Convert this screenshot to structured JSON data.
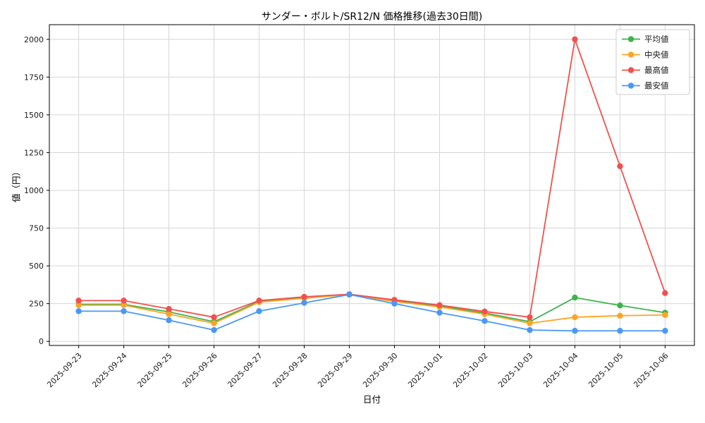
{
  "chart_data": {
    "type": "line",
    "title": "サンダー・ボルト/SR12/N 価格推移(過去30日間)",
    "xlabel": "日付",
    "ylabel": "値（円）",
    "x": [
      "2025-09-23",
      "2025-09-24",
      "2025-09-25",
      "2025-09-26",
      "2025-09-27",
      "2025-09-28",
      "2025-09-29",
      "2025-09-30",
      "2025-10-01",
      "2025-10-02",
      "2025-10-03",
      "2025-10-04",
      "2025-10-05",
      "2025-10-06"
    ],
    "series": [
      {
        "key": "average",
        "name": "平均値",
        "color": "#3cb44b",
        "values": [
          245,
          245,
          195,
          130,
          265,
          290,
          310,
          268,
          232,
          188,
          130,
          290,
          238,
          190
        ]
      },
      {
        "key": "median",
        "name": "中央値",
        "color": "#ffa323",
        "values": [
          240,
          240,
          180,
          120,
          260,
          285,
          310,
          264,
          228,
          180,
          120,
          160,
          170,
          175
        ]
      },
      {
        "key": "max",
        "name": "最高値",
        "color": "#f1514e",
        "values": [
          270,
          270,
          215,
          160,
          270,
          295,
          312,
          275,
          240,
          198,
          160,
          2000,
          1160,
          320
        ]
      },
      {
        "key": "min",
        "name": "最安値",
        "color": "#4a98f5",
        "values": [
          200,
          200,
          140,
          75,
          200,
          255,
          310,
          250,
          190,
          135,
          75,
          70,
          70,
          70
        ]
      }
    ],
    "yticks": [
      0,
      250,
      500,
      750,
      1000,
      1250,
      1500,
      1750,
      2000
    ],
    "ylim": [
      -27,
      2097
    ],
    "grid": true,
    "legend_position": "upper right",
    "colors": {
      "grid": "#d6d6d6",
      "spine": "#000000",
      "legend_border": "#cccccc",
      "legend_bg": "#ffffff"
    }
  }
}
